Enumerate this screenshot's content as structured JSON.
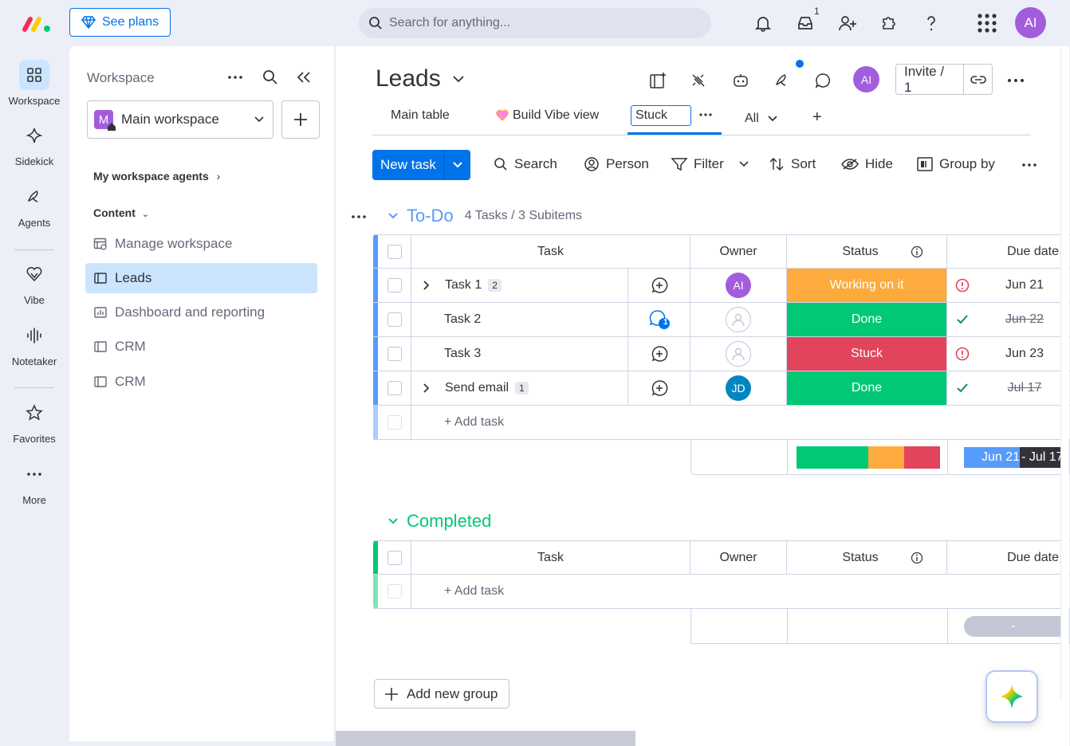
{
  "top": {
    "see_plans": "See plans",
    "search_placeholder": "Search for anything...",
    "inbox_badge": "1",
    "user_initials": "AI"
  },
  "leftnav": {
    "items": [
      {
        "label": "Workspace",
        "icon": "workspace-icon"
      },
      {
        "label": "Sidekick",
        "icon": "sidekick-icon"
      },
      {
        "label": "Agents",
        "icon": "agents-icon"
      },
      {
        "label": "Vibe",
        "icon": "vibe-icon"
      },
      {
        "label": "Notetaker",
        "icon": "notetaker-icon"
      },
      {
        "label": "Favorites",
        "icon": "star-icon"
      },
      {
        "label": "More",
        "icon": "more-icon"
      }
    ]
  },
  "sidebar": {
    "title": "Workspace",
    "workspace_name": "Main workspace",
    "workspace_badge": "M",
    "agents_section": "My workspace agents",
    "content_section": "Content",
    "items": [
      {
        "label": "Manage workspace",
        "icon": "manage-icon"
      },
      {
        "label": "Leads",
        "icon": "board-icon"
      },
      {
        "label": "Dashboard and reporting",
        "icon": "dashboard-icon"
      },
      {
        "label": "CRM",
        "icon": "board-icon"
      },
      {
        "label": "CRM",
        "icon": "board-icon"
      }
    ]
  },
  "board": {
    "title": "Leads",
    "avatar": "AI",
    "invite": "Invite / 1",
    "tabs": {
      "main_table": "Main table",
      "vibe": "Build Vibe view",
      "editing": "Stuck",
      "all": "All",
      "add": "+"
    },
    "toolbar": {
      "new_task": "New task",
      "search": "Search",
      "person": "Person",
      "filter": "Filter",
      "sort": "Sort",
      "hide": "Hide",
      "group_by": "Group by"
    }
  },
  "groups": {
    "todo": {
      "title": "To-Do",
      "count": "4 Tasks / 3 Subitems",
      "color": "#579bfc",
      "columns": {
        "task": "Task",
        "owner": "Owner",
        "status": "Status",
        "due": "Due date"
      },
      "rows": [
        {
          "task": "Task 1",
          "sub": "2",
          "owner": "AI",
          "status": "Working on it",
          "status_color": "#fdab3d",
          "due": "Jun 21",
          "alert": "overdue",
          "done": false
        },
        {
          "task": "Task 2",
          "sub": "",
          "owner": "",
          "status": "Done",
          "status_color": "#00c875",
          "due": "Jun 22",
          "alert": "check",
          "done": true,
          "updates": "1"
        },
        {
          "task": "Task 3",
          "sub": "",
          "owner": "",
          "status": "Stuck",
          "status_color": "#e2445c",
          "due": "Jun 23",
          "alert": "overdue",
          "done": false
        },
        {
          "task": "Send email",
          "sub": "1",
          "owner": "JD",
          "status": "Done",
          "status_color": "#00c875",
          "due": "Jul 17",
          "alert": "check",
          "done": true
        }
      ],
      "add_task": "+ Add task",
      "summary_range": "Jun 21 - Jul 17",
      "summary_range_start": "Jun 21",
      "summary_range_end": "- Jul 17"
    },
    "completed": {
      "title": "Completed",
      "color": "#00c875",
      "columns": {
        "task": "Task",
        "owner": "Owner",
        "status": "Status",
        "due": "Due date"
      },
      "add_task": "+ Add task",
      "summary_range": "-"
    }
  },
  "add_group": "Add new group"
}
